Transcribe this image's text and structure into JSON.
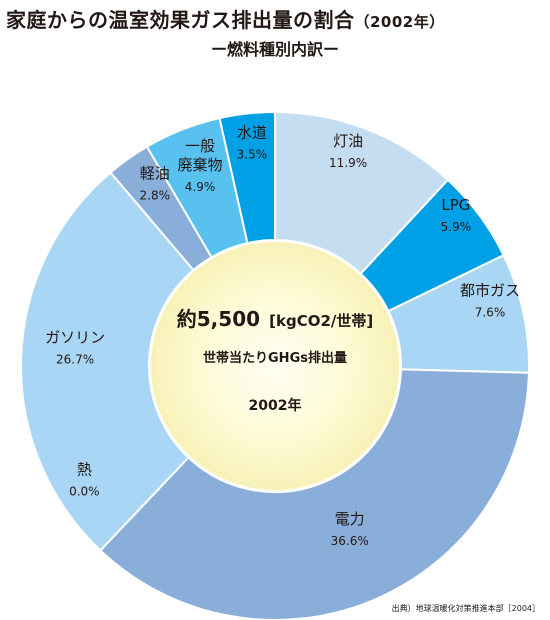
{
  "title": "家庭からの温室効果ガス排出量の割合",
  "title_year": "（2002年）",
  "subtitle": "ー燃料種別内訳ー",
  "center": {
    "line1_value": "約5,500",
    "line1_unit": "[kgCO2/世帯]",
    "line2": "世帯当たりGHGs排出量",
    "line3": "2002年"
  },
  "source": "出典）地球温暖化対策推進本部［2004］",
  "chart_data": {
    "type": "pie",
    "donut": true,
    "start": "12 o'clock",
    "direction": "clockwise",
    "slices": [
      {
        "label": "灯油",
        "value": 11.9,
        "display": "11.9%",
        "color": "#c5ddf1"
      },
      {
        "label": "LPG",
        "value": 5.9,
        "display": "5.9%",
        "color": "#00a0e6"
      },
      {
        "label": "都市ガス",
        "value": 7.6,
        "display": "7.6%",
        "color": "#a9d6f5"
      },
      {
        "label": "電力",
        "value": 36.6,
        "display": "36.6%",
        "color": "#89aed9"
      },
      {
        "label": "熱",
        "value": 0.0,
        "display": "0.0%",
        "color": "#89aed9"
      },
      {
        "label": "ガソリン",
        "value": 26.7,
        "display": "26.7%",
        "color": "#a9d6f5"
      },
      {
        "label": "軽油",
        "value": 2.8,
        "display": "2.8%",
        "color": "#89aed9"
      },
      {
        "label": "一般\n廃棄物",
        "value": 4.9,
        "display": "4.9%",
        "color": "#59c1f0"
      },
      {
        "label": "水道",
        "value": 3.5,
        "display": "3.5%",
        "color": "#00a0e6"
      }
    ]
  }
}
